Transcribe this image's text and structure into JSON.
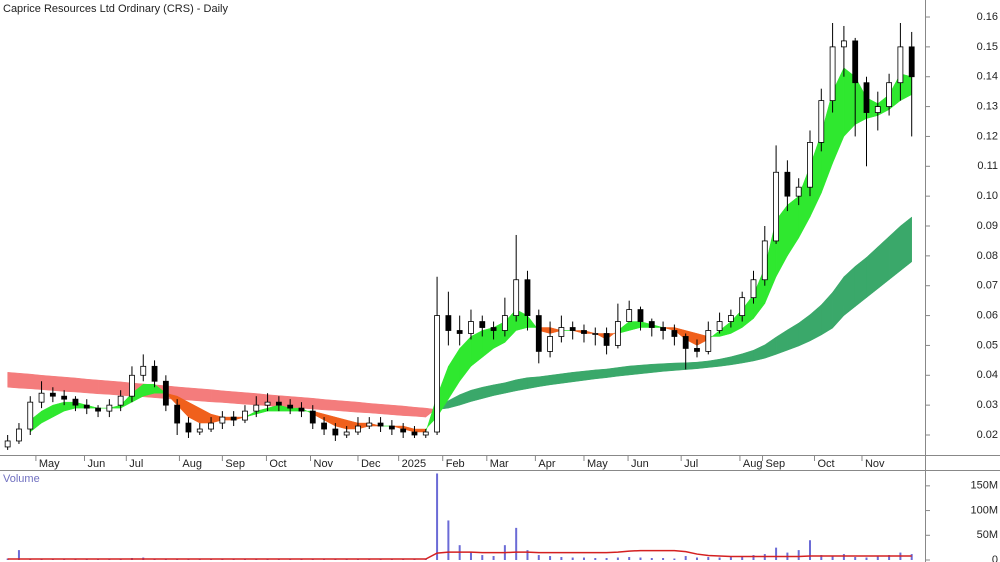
{
  "chart_data": [
    {
      "type": "candlestick",
      "title": "Caprice Resources Ltd Ordinary (CRS) - Daily",
      "x": [
        0,
        1,
        2,
        3,
        4,
        5,
        6,
        7,
        8,
        9,
        10,
        11,
        12,
        13,
        14,
        15,
        16,
        17,
        18,
        19,
        20,
        21,
        22,
        23,
        24,
        25,
        26,
        27,
        28,
        29,
        30,
        31,
        32,
        33,
        34,
        35,
        36,
        37,
        38,
        39,
        40,
        41,
        42,
        43,
        44,
        45,
        46,
        47,
        48,
        49,
        50,
        51,
        52,
        53,
        54,
        55,
        56,
        57,
        58,
        59,
        60,
        61,
        62,
        63,
        64,
        65,
        66,
        67,
        68,
        69,
        70,
        71,
        72,
        73,
        74,
        75,
        76,
        77,
        78,
        79,
        80
      ],
      "open": [
        0.016,
        0.018,
        0.022,
        0.031,
        0.034,
        0.033,
        0.032,
        0.03,
        0.029,
        0.028,
        0.03,
        0.033,
        0.04,
        0.043,
        0.038,
        0.03,
        0.024,
        0.021,
        0.022,
        0.024,
        0.026,
        0.025,
        0.028,
        0.03,
        0.031,
        0.03,
        0.029,
        0.028,
        0.024,
        0.022,
        0.02,
        0.021,
        0.023,
        0.024,
        0.023,
        0.022,
        0.021,
        0.02,
        0.021,
        0.06,
        0.055,
        0.054,
        0.058,
        0.056,
        0.055,
        0.06,
        0.072,
        0.06,
        0.048,
        0.053,
        0.056,
        0.055,
        0.054,
        0.054,
        0.05,
        0.058,
        0.062,
        0.058,
        0.056,
        0.055,
        0.053,
        0.049,
        0.048,
        0.055,
        0.058,
        0.06,
        0.066,
        0.072,
        0.085,
        0.108,
        0.1,
        0.103,
        0.118,
        0.132,
        0.15,
        0.152,
        0.138,
        0.128,
        0.13,
        0.138,
        0.15
      ],
      "high": [
        0.02,
        0.024,
        0.033,
        0.038,
        0.036,
        0.035,
        0.033,
        0.032,
        0.03,
        0.032,
        0.035,
        0.043,
        0.047,
        0.045,
        0.04,
        0.032,
        0.026,
        0.024,
        0.026,
        0.028,
        0.028,
        0.03,
        0.033,
        0.034,
        0.033,
        0.032,
        0.031,
        0.03,
        0.026,
        0.024,
        0.023,
        0.026,
        0.026,
        0.026,
        0.025,
        0.024,
        0.023,
        0.022,
        0.073,
        0.068,
        0.06,
        0.062,
        0.06,
        0.058,
        0.066,
        0.087,
        0.075,
        0.062,
        0.058,
        0.06,
        0.058,
        0.057,
        0.056,
        0.056,
        0.064,
        0.065,
        0.063,
        0.059,
        0.058,
        0.057,
        0.054,
        0.052,
        0.058,
        0.061,
        0.062,
        0.068,
        0.075,
        0.09,
        0.117,
        0.112,
        0.106,
        0.122,
        0.136,
        0.158,
        0.157,
        0.153,
        0.14,
        0.135,
        0.141,
        0.158,
        0.155
      ],
      "low": [
        0.015,
        0.017,
        0.02,
        0.029,
        0.031,
        0.03,
        0.028,
        0.027,
        0.026,
        0.026,
        0.028,
        0.031,
        0.038,
        0.036,
        0.028,
        0.02,
        0.019,
        0.02,
        0.021,
        0.022,
        0.023,
        0.024,
        0.026,
        0.028,
        0.028,
        0.027,
        0.026,
        0.022,
        0.02,
        0.018,
        0.019,
        0.02,
        0.022,
        0.021,
        0.02,
        0.019,
        0.019,
        0.019,
        0.02,
        0.05,
        0.05,
        0.052,
        0.053,
        0.052,
        0.053,
        0.058,
        0.055,
        0.044,
        0.046,
        0.051,
        0.052,
        0.051,
        0.05,
        0.047,
        0.049,
        0.058,
        0.055,
        0.053,
        0.052,
        0.05,
        0.042,
        0.046,
        0.047,
        0.054,
        0.056,
        0.058,
        0.064,
        0.07,
        0.084,
        0.095,
        0.097,
        0.1,
        0.115,
        0.128,
        0.14,
        0.12,
        0.11,
        0.122,
        0.127,
        0.132,
        0.12
      ],
      "close": [
        0.018,
        0.022,
        0.031,
        0.034,
        0.033,
        0.032,
        0.03,
        0.029,
        0.028,
        0.03,
        0.033,
        0.04,
        0.043,
        0.038,
        0.03,
        0.024,
        0.021,
        0.022,
        0.024,
        0.026,
        0.025,
        0.028,
        0.03,
        0.031,
        0.03,
        0.029,
        0.028,
        0.024,
        0.022,
        0.02,
        0.021,
        0.023,
        0.024,
        0.023,
        0.022,
        0.021,
        0.02,
        0.021,
        0.06,
        0.055,
        0.054,
        0.058,
        0.056,
        0.055,
        0.06,
        0.072,
        0.06,
        0.048,
        0.053,
        0.056,
        0.055,
        0.054,
        0.054,
        0.05,
        0.058,
        0.062,
        0.058,
        0.056,
        0.055,
        0.053,
        0.049,
        0.048,
        0.055,
        0.058,
        0.06,
        0.066,
        0.072,
        0.085,
        0.108,
        0.1,
        0.103,
        0.118,
        0.132,
        0.15,
        0.152,
        0.138,
        0.128,
        0.13,
        0.138,
        0.15,
        0.14
      ],
      "ribbons": [
        {
          "color_up": "#3aa86a",
          "color_down": "#f47c7c",
          "fast": [
            0.036,
            0.0357,
            0.0355,
            0.0352,
            0.0349,
            0.0346,
            0.0344,
            0.0341,
            0.0338,
            0.0336,
            0.0333,
            0.033,
            0.0328,
            0.0325,
            0.0322,
            0.0319,
            0.0317,
            0.0314,
            0.0311,
            0.0309,
            0.0306,
            0.0303,
            0.0301,
            0.0298,
            0.0295,
            0.0292,
            0.029,
            0.0287,
            0.0284,
            0.0282,
            0.0279,
            0.0276,
            0.0274,
            0.0271,
            0.0268,
            0.0265,
            0.0263,
            0.026,
            0.029,
            0.0315,
            0.0335,
            0.035,
            0.036,
            0.0368,
            0.0375,
            0.0385,
            0.0392,
            0.0395,
            0.04,
            0.0405,
            0.041,
            0.0414,
            0.0418,
            0.0421,
            0.0426,
            0.0431,
            0.0434,
            0.0437,
            0.0439,
            0.0441,
            0.0442,
            0.0444,
            0.0448,
            0.0454,
            0.0462,
            0.0472,
            0.0484,
            0.0502,
            0.0528,
            0.0552,
            0.0575,
            0.0603,
            0.0636,
            0.0678,
            0.073,
            0.0765,
            0.0795,
            0.083,
            0.0865,
            0.09,
            0.093
          ],
          "slow": [
            0.041,
            0.0407,
            0.0404,
            0.04,
            0.0397,
            0.0394,
            0.0391,
            0.0387,
            0.0384,
            0.0381,
            0.0378,
            0.0374,
            0.0371,
            0.0368,
            0.0365,
            0.0361,
            0.0358,
            0.0355,
            0.0352,
            0.0348,
            0.0345,
            0.0342,
            0.0339,
            0.0335,
            0.0332,
            0.0329,
            0.0326,
            0.0323,
            0.0319,
            0.0316,
            0.0313,
            0.031,
            0.0306,
            0.0303,
            0.03,
            0.0297,
            0.0293,
            0.029,
            0.0285,
            0.029,
            0.03,
            0.0312,
            0.0322,
            0.0332,
            0.034,
            0.0348,
            0.0355,
            0.0362,
            0.0368,
            0.0373,
            0.0378,
            0.0383,
            0.0388,
            0.0392,
            0.0397,
            0.0401,
            0.0405,
            0.0409,
            0.0413,
            0.0416,
            0.0419,
            0.0422,
            0.0426,
            0.043,
            0.0435,
            0.0441,
            0.0448,
            0.0457,
            0.047,
            0.0484,
            0.0498,
            0.0515,
            0.0535,
            0.0558,
            0.06,
            0.063,
            0.066,
            0.069,
            0.072,
            0.075,
            0.078
          ]
        },
        {
          "color_up": "#2fe82f",
          "color_down": "#f0601c",
          "fast": [
            null,
            null,
            0.025,
            0.028,
            0.03,
            0.031,
            0.031,
            0.03,
            0.029,
            0.029,
            0.03,
            0.034,
            0.037,
            0.037,
            0.034,
            0.03,
            0.026,
            0.024,
            0.024,
            0.025,
            0.025,
            0.026,
            0.028,
            0.029,
            0.03,
            0.029,
            0.029,
            0.027,
            0.025,
            0.023,
            0.022,
            0.022,
            0.023,
            0.023,
            0.023,
            0.022,
            0.021,
            0.021,
            0.033,
            0.043,
            0.049,
            0.053,
            0.055,
            0.056,
            0.058,
            0.062,
            0.06,
            0.055,
            0.054,
            0.055,
            0.055,
            0.054,
            0.054,
            0.052,
            0.055,
            0.058,
            0.058,
            0.057,
            0.056,
            0.055,
            0.052,
            0.05,
            0.052,
            0.055,
            0.058,
            0.062,
            0.067,
            0.076,
            0.092,
            0.097,
            0.1,
            0.11,
            0.121,
            0.135,
            0.143,
            0.14,
            0.133,
            0.131,
            0.134,
            0.141,
            0.14
          ],
          "slow": [
            null,
            null,
            0.021,
            0.024,
            0.026,
            0.028,
            0.029,
            0.029,
            0.029,
            0.029,
            0.029,
            0.031,
            0.033,
            0.034,
            0.034,
            0.033,
            0.031,
            0.029,
            0.027,
            0.026,
            0.026,
            0.026,
            0.027,
            0.028,
            0.028,
            0.028,
            0.028,
            0.028,
            0.027,
            0.026,
            0.025,
            0.024,
            0.024,
            0.023,
            0.023,
            0.023,
            0.022,
            0.022,
            0.026,
            0.032,
            0.038,
            0.043,
            0.046,
            0.049,
            0.051,
            0.055,
            0.056,
            0.056,
            0.056,
            0.055,
            0.055,
            0.055,
            0.054,
            0.054,
            0.054,
            0.055,
            0.056,
            0.056,
            0.056,
            0.056,
            0.055,
            0.054,
            0.053,
            0.053,
            0.054,
            0.056,
            0.059,
            0.064,
            0.073,
            0.08,
            0.086,
            0.093,
            0.101,
            0.111,
            0.12,
            0.124,
            0.126,
            0.127,
            0.129,
            0.132,
            0.134
          ]
        }
      ],
      "xlim": [
        -0.5,
        81
      ],
      "xticks": [
        {
          "value": 2.5,
          "label": "May"
        },
        {
          "value": 6.8,
          "label": "Jun"
        },
        {
          "value": 10.5,
          "label": "Jul"
        },
        {
          "value": 15.2,
          "label": "Aug"
        },
        {
          "value": 19.0,
          "label": "Sep"
        },
        {
          "value": 22.9,
          "label": "Oct"
        },
        {
          "value": 26.8,
          "label": "Nov"
        },
        {
          "value": 31.0,
          "label": "Dec"
        },
        {
          "value": 34.6,
          "label": "2025"
        },
        {
          "value": 38.5,
          "label": "Feb"
        },
        {
          "value": 42.4,
          "label": "Mar"
        },
        {
          "value": 46.7,
          "label": "Apr"
        },
        {
          "value": 51.0,
          "label": "May"
        },
        {
          "value": 54.9,
          "label": "Jun"
        },
        {
          "value": 59.6,
          "label": "Jul"
        },
        {
          "value": 64.8,
          "label": "Aug"
        },
        {
          "value": 66.8,
          "label": "Sep"
        },
        {
          "value": 71.4,
          "label": "Oct"
        },
        {
          "value": 75.6,
          "label": "Nov"
        }
      ],
      "ylim": [
        0.0133,
        0.1657
      ],
      "yticks": [
        0.02,
        0.03,
        0.04,
        0.05,
        0.06,
        0.07,
        0.08,
        0.09,
        {
          "value": 0.1,
          "label": "0.10"
        },
        0.11,
        0.12,
        0.13,
        0.14,
        0.15,
        0.16
      ]
    },
    {
      "type": "bar",
      "title": "Volume",
      "color": "#6b6bd6",
      "values": [
        3,
        20,
        2,
        2,
        2,
        1,
        1,
        1,
        2,
        1,
        2,
        4,
        5,
        3,
        2,
        1,
        1,
        1,
        1,
        1,
        1,
        1,
        2,
        2,
        2,
        1,
        1,
        1,
        1,
        1,
        1,
        1,
        1,
        1,
        1,
        1,
        1,
        2,
        175,
        80,
        30,
        15,
        10,
        8,
        30,
        65,
        20,
        10,
        8,
        6,
        5,
        5,
        4,
        4,
        5,
        6,
        5,
        4,
        4,
        3,
        8,
        5,
        6,
        5,
        6,
        8,
        10,
        12,
        25,
        15,
        20,
        40,
        10,
        8,
        12,
        6,
        5,
        8,
        10,
        15,
        12
      ],
      "moving_average": {
        "color": "#d42020",
        "values": [
          2,
          2,
          2,
          2,
          2,
          2,
          2,
          2,
          2,
          2,
          2,
          2,
          2,
          2,
          2,
          2,
          2,
          2,
          2,
          2,
          2,
          2,
          2,
          2,
          2,
          2,
          2,
          2,
          2,
          2,
          2,
          2,
          2,
          2,
          2,
          2,
          2,
          2,
          14,
          16,
          16,
          16,
          15,
          15,
          15,
          16,
          16,
          15,
          15,
          15,
          15,
          15,
          15,
          15,
          16,
          18,
          19,
          19,
          19,
          19,
          17,
          12,
          9,
          8,
          7,
          7,
          7,
          7,
          7,
          7,
          7,
          8,
          8,
          8,
          8,
          8,
          8,
          8,
          8,
          8,
          8
        ]
      },
      "ylim": [
        0,
        178
      ],
      "yticks": [
        0,
        {
          "value": 50,
          "label": "50M"
        },
        {
          "value": 100,
          "label": "100M"
        },
        {
          "value": 150,
          "label": "150M"
        }
      ]
    }
  ]
}
